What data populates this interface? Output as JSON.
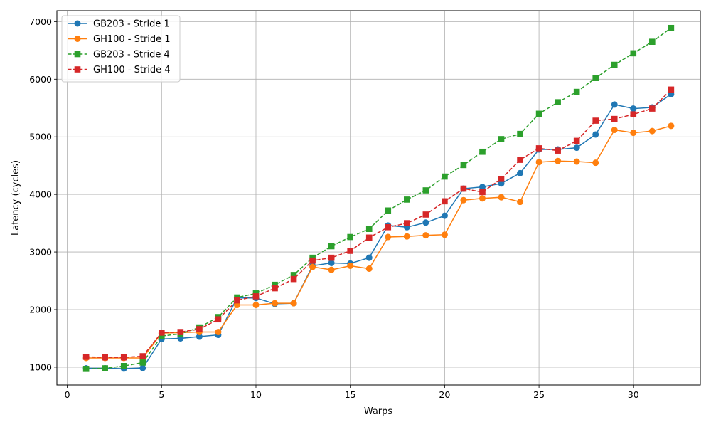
{
  "chart_data": {
    "type": "line",
    "title": "",
    "xlabel": "Warps",
    "ylabel": "Latency (cycles)",
    "xlim": [
      -0.55,
      33.55
    ],
    "ylim": [
      690,
      7190
    ],
    "xticks": [
      0,
      5,
      10,
      15,
      20,
      25,
      30
    ],
    "yticks": [
      1000,
      2000,
      3000,
      4000,
      5000,
      6000,
      7000
    ],
    "grid": true,
    "legend_position": "top-left",
    "x": [
      1,
      2,
      3,
      4,
      5,
      6,
      7,
      8,
      9,
      10,
      11,
      12,
      13,
      14,
      15,
      16,
      17,
      18,
      19,
      20,
      21,
      22,
      23,
      24,
      25,
      26,
      27,
      28,
      29,
      30,
      31,
      32
    ],
    "series": [
      {
        "name": "GB203 - Stride 1",
        "color": "#1f77b4",
        "line": "solid",
        "marker": "circle",
        "values": [
          980,
          980,
          975,
          985,
          1490,
          1500,
          1530,
          1560,
          2200,
          2200,
          2100,
          2110,
          2760,
          2810,
          2800,
          2900,
          3460,
          3430,
          3510,
          3630,
          4100,
          4130,
          4190,
          4370,
          4780,
          4780,
          4810,
          5040,
          5560,
          5490,
          5510,
          5740
        ]
      },
      {
        "name": "GH100 - Stride 1",
        "color": "#ff7f0e",
        "line": "solid",
        "marker": "circle",
        "values": [
          1160,
          1160,
          1160,
          1160,
          1590,
          1600,
          1610,
          1610,
          2080,
          2080,
          2110,
          2110,
          2740,
          2690,
          2760,
          2710,
          3260,
          3270,
          3290,
          3300,
          3900,
          3930,
          3950,
          3870,
          4560,
          4580,
          4570,
          4550,
          5120,
          5070,
          5100,
          5190
        ]
      },
      {
        "name": "GB203 - Stride 4",
        "color": "#2ca02c",
        "line": "dashed",
        "marker": "square",
        "values": [
          970,
          980,
          1020,
          1080,
          1540,
          1580,
          1690,
          1870,
          2210,
          2280,
          2430,
          2600,
          2900,
          3100,
          3260,
          3400,
          3720,
          3910,
          4070,
          4310,
          4510,
          4740,
          4960,
          5050,
          5400,
          5600,
          5780,
          6020,
          6250,
          6450,
          6650,
          6890
        ]
      },
      {
        "name": "GH100 - Stride 4",
        "color": "#d62728",
        "line": "dashed",
        "marker": "square",
        "values": [
          1180,
          1170,
          1170,
          1190,
          1600,
          1610,
          1660,
          1830,
          2160,
          2230,
          2370,
          2530,
          2850,
          2900,
          3020,
          3250,
          3430,
          3500,
          3650,
          3880,
          4100,
          4040,
          4270,
          4600,
          4800,
          4760,
          4930,
          5280,
          5310,
          5390,
          5490,
          5820
        ]
      }
    ]
  }
}
